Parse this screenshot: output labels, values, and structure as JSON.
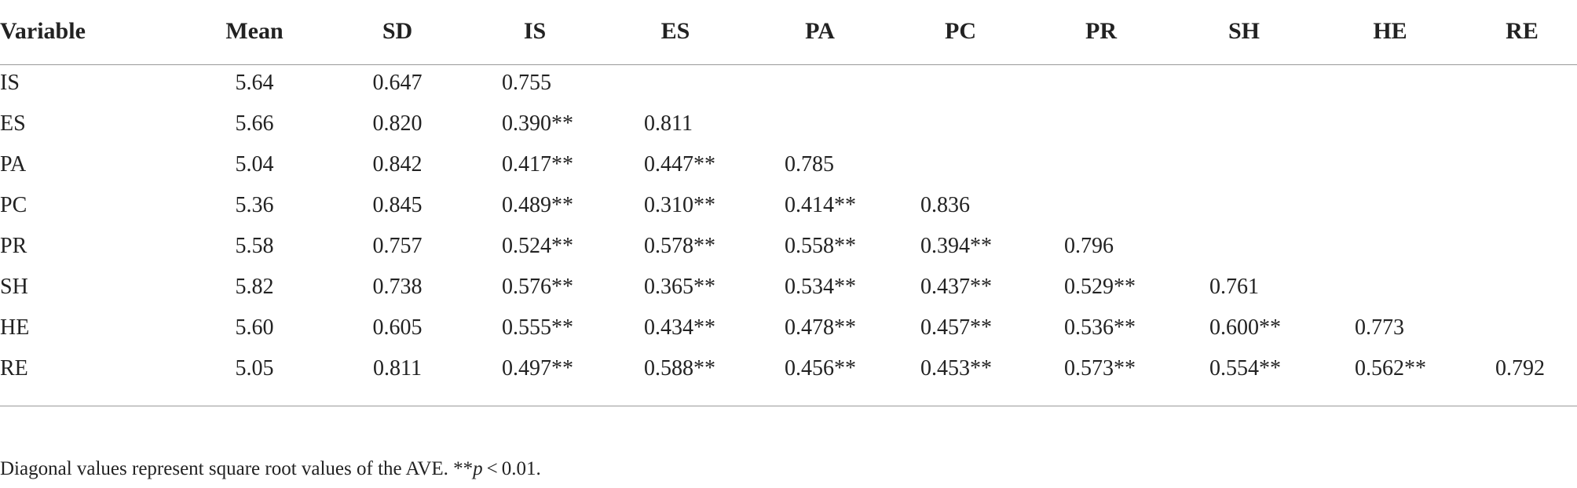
{
  "table": {
    "header": [
      "Variable",
      "Mean",
      "SD",
      "IS",
      "ES",
      "PA",
      "PC",
      "PR",
      "SH",
      "HE",
      "RE"
    ],
    "rows": [
      [
        "IS",
        "5.64",
        "0.647",
        "0.755"
      ],
      [
        "ES",
        "5.66",
        "0.820",
        "0.390**",
        "0.811"
      ],
      [
        "PA",
        "5.04",
        "0.842",
        "0.417**",
        "0.447**",
        "0.785"
      ],
      [
        "PC",
        "5.36",
        "0.845",
        "0.489**",
        "0.310**",
        "0.414**",
        "0.836"
      ],
      [
        "PR",
        "5.58",
        "0.757",
        "0.524**",
        "0.578**",
        "0.558**",
        "0.394**",
        "0.796"
      ],
      [
        "SH",
        "5.82",
        "0.738",
        "0.576**",
        "0.365**",
        "0.534**",
        "0.437**",
        "0.529**",
        "0.761"
      ],
      [
        "HE",
        "5.60",
        "0.605",
        "0.555**",
        "0.434**",
        "0.478**",
        "0.457**",
        "0.536**",
        "0.600**",
        "0.773"
      ],
      [
        "RE",
        "5.05",
        "0.811",
        "0.497**",
        "0.588**",
        "0.456**",
        "0.453**",
        "0.573**",
        "0.554**",
        "0.562**",
        "0.792"
      ]
    ],
    "footnote": [
      "Diagonal values represent square root values of the AVE. **",
      "p",
      " < 0.01."
    ]
  }
}
